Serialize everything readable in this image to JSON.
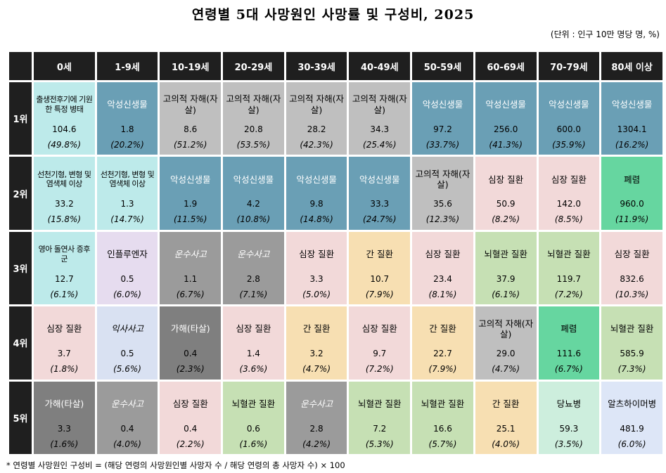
{
  "title": "연령별 5대 사망원인 사망률 및 구성비, 2025",
  "unit": "(단위 : 인구 10만 명당 명, %)",
  "footnote": "* 연령별 사망원인 구성비 = (해당 연령의 사망원인별 사망자 수 / 해당 연령의 총 사망자 수) × 100",
  "colors": {
    "header_bg": "#1f1f1f",
    "cancer": "#6a9fb5",
    "suicide": "#bfbfbf",
    "perinatal": "#bdeaea",
    "congenital": "#bdeaea",
    "heart": "#f2d9d9",
    "liver": "#f7dfb2",
    "cerebro": "#c6e0b4",
    "pneumonia": "#66d6a0",
    "transport": "#9b9b9b",
    "homicide": "#7f7f7f",
    "influenza": "#e6dcef",
    "accident_fall": "#d9e1f2",
    "diabetes": "#cdeedd",
    "alzheimer": "#dde6f7"
  },
  "chart_data": {
    "type": "table",
    "title": "연령별 5대 사망원인 사망률 및 구성비, 2025",
    "columns": [
      "0세",
      "1-9세",
      "10-19세",
      "20-29세",
      "30-39세",
      "40-49세",
      "50-59세",
      "60-69세",
      "70-79세",
      "80세 이상"
    ],
    "ranks": [
      "1위",
      "2위",
      "3위",
      "4위",
      "5위"
    ],
    "rows": [
      [
        {
          "cause": "출생전후기에 기원한 특정 병태",
          "rate": "104.6",
          "pct": "(49.8%)",
          "cat": "perinatal"
        },
        {
          "cause": "악성신생물",
          "rate": "1.8",
          "pct": "(20.2%)",
          "cat": "cancer"
        },
        {
          "cause": "고의적 자해(자살)",
          "rate": "8.6",
          "pct": "(51.2%)",
          "cat": "suicide"
        },
        {
          "cause": "고의적 자해(자살)",
          "rate": "20.8",
          "pct": "(53.5%)",
          "cat": "suicide"
        },
        {
          "cause": "고의적 자해(자살)",
          "rate": "28.2",
          "pct": "(42.3%)",
          "cat": "suicide"
        },
        {
          "cause": "고의적 자해(자살)",
          "rate": "34.3",
          "pct": "(25.4%)",
          "cat": "suicide"
        },
        {
          "cause": "악성신생물",
          "rate": "97.2",
          "pct": "(33.7%)",
          "cat": "cancer"
        },
        {
          "cause": "악성신생물",
          "rate": "256.0",
          "pct": "(41.3%)",
          "cat": "cancer"
        },
        {
          "cause": "악성신생물",
          "rate": "600.0",
          "pct": "(35.9%)",
          "cat": "cancer"
        },
        {
          "cause": "악성신생물",
          "rate": "1304.1",
          "pct": "(16.2%)",
          "cat": "cancer"
        }
      ],
      [
        {
          "cause": "선천기형, 변형 및 염색체 이상",
          "rate": "33.2",
          "pct": "(15.8%)",
          "cat": "congenital"
        },
        {
          "cause": "선천기형, 변형 및 염색체 이상",
          "rate": "1.3",
          "pct": "(14.7%)",
          "cat": "congenital"
        },
        {
          "cause": "악성신생물",
          "rate": "1.9",
          "pct": "(11.5%)",
          "cat": "cancer"
        },
        {
          "cause": "악성신생물",
          "rate": "4.2",
          "pct": "(10.8%)",
          "cat": "cancer"
        },
        {
          "cause": "악성신생물",
          "rate": "9.8",
          "pct": "(14.8%)",
          "cat": "cancer"
        },
        {
          "cause": "악성신생물",
          "rate": "33.3",
          "pct": "(24.7%)",
          "cat": "cancer"
        },
        {
          "cause": "고의적 자해(자살)",
          "rate": "35.6",
          "pct": "(12.3%)",
          "cat": "suicide"
        },
        {
          "cause": "심장 질환",
          "rate": "50.9",
          "pct": "(8.2%)",
          "cat": "heart"
        },
        {
          "cause": "심장 질환",
          "rate": "142.0",
          "pct": "(8.5%)",
          "cat": "heart"
        },
        {
          "cause": "폐렴",
          "rate": "960.0",
          "pct": "(11.9%)",
          "cat": "pneumonia"
        }
      ],
      [
        {
          "cause": "영아 돌연사 증후군",
          "rate": "12.7",
          "pct": "(6.1%)",
          "cat": "perinatal"
        },
        {
          "cause": "인플루엔자",
          "rate": "0.5",
          "pct": "(6.0%)",
          "cat": "influenza"
        },
        {
          "cause": "운수사고",
          "rate": "1.1",
          "pct": "(6.7%)",
          "cat": "transport"
        },
        {
          "cause": "운수사고",
          "rate": "2.8",
          "pct": "(7.1%)",
          "cat": "transport"
        },
        {
          "cause": "심장 질환",
          "rate": "3.3",
          "pct": "(5.0%)",
          "cat": "heart"
        },
        {
          "cause": "간 질환",
          "rate": "10.7",
          "pct": "(7.9%)",
          "cat": "liver"
        },
        {
          "cause": "심장 질환",
          "rate": "23.4",
          "pct": "(8.1%)",
          "cat": "heart"
        },
        {
          "cause": "뇌혈관 질환",
          "rate": "37.9",
          "pct": "(6.1%)",
          "cat": "cerebro"
        },
        {
          "cause": "뇌혈관 질환",
          "rate": "119.7",
          "pct": "(7.2%)",
          "cat": "cerebro"
        },
        {
          "cause": "심장 질환",
          "rate": "832.6",
          "pct": "(10.3%)",
          "cat": "heart"
        }
      ],
      [
        {
          "cause": "심장 질환",
          "rate": "3.7",
          "pct": "(1.8%)",
          "cat": "heart"
        },
        {
          "cause": "익사사고",
          "rate": "0.5",
          "pct": "(5.6%)",
          "cat": "accident_fall"
        },
        {
          "cause": "가해(타살)",
          "rate": "0.4",
          "pct": "(2.3%)",
          "cat": "homicide"
        },
        {
          "cause": "심장 질환",
          "rate": "1.4",
          "pct": "(3.6%)",
          "cat": "heart"
        },
        {
          "cause": "간 질환",
          "rate": "3.2",
          "pct": "(4.7%)",
          "cat": "liver"
        },
        {
          "cause": "심장 질환",
          "rate": "9.7",
          "pct": "(7.2%)",
          "cat": "heart"
        },
        {
          "cause": "간 질환",
          "rate": "22.7",
          "pct": "(7.9%)",
          "cat": "liver"
        },
        {
          "cause": "고의적 자해(자살)",
          "rate": "29.0",
          "pct": "(4.7%)",
          "cat": "suicide"
        },
        {
          "cause": "폐렴",
          "rate": "111.6",
          "pct": "(6.7%)",
          "cat": "pneumonia"
        },
        {
          "cause": "뇌혈관 질환",
          "rate": "585.9",
          "pct": "(7.3%)",
          "cat": "cerebro"
        }
      ],
      [
        {
          "cause": "가해(타살)",
          "rate": "3.3",
          "pct": "(1.6%)",
          "cat": "homicide"
        },
        {
          "cause": "운수사고",
          "rate": "0.4",
          "pct": "(4.0%)",
          "cat": "transport"
        },
        {
          "cause": "심장 질환",
          "rate": "0.4",
          "pct": "(2.2%)",
          "cat": "heart"
        },
        {
          "cause": "뇌혈관 질환",
          "rate": "0.6",
          "pct": "(1.6%)",
          "cat": "cerebro"
        },
        {
          "cause": "운수사고",
          "rate": "2.8",
          "pct": "(4.2%)",
          "cat": "transport"
        },
        {
          "cause": "뇌혈관 질환",
          "rate": "7.2",
          "pct": "(5.3%)",
          "cat": "cerebro"
        },
        {
          "cause": "뇌혈관 질환",
          "rate": "16.6",
          "pct": "(5.7%)",
          "cat": "cerebro"
        },
        {
          "cause": "간 질환",
          "rate": "25.1",
          "pct": "(4.0%)",
          "cat": "liver"
        },
        {
          "cause": "당뇨병",
          "rate": "59.3",
          "pct": "(3.5%)",
          "cat": "diabetes"
        },
        {
          "cause": "알츠하이머병",
          "rate": "481.9",
          "pct": "(6.0%)",
          "cat": "alzheimer"
        }
      ]
    ]
  }
}
